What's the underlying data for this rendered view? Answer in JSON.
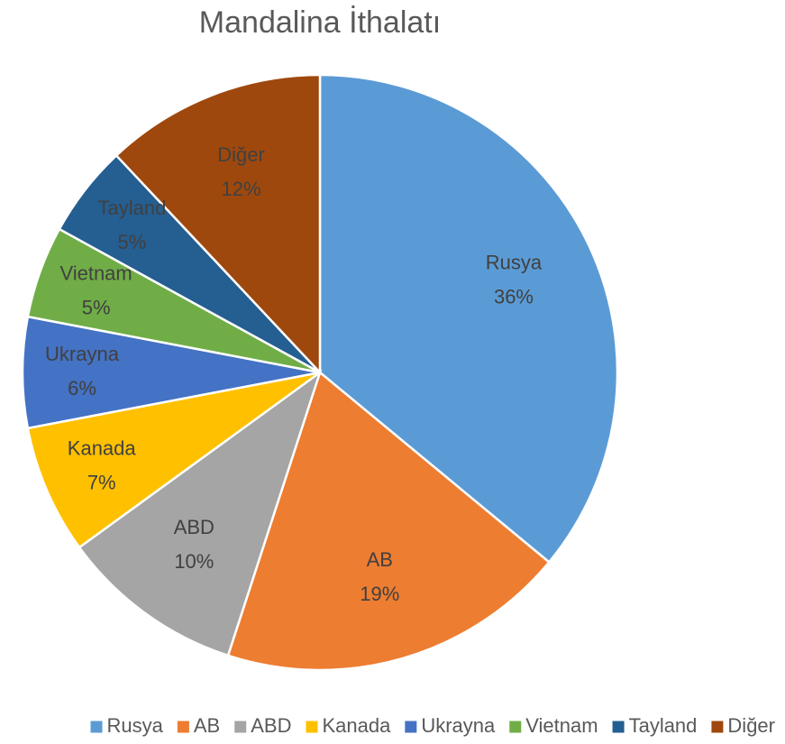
{
  "chart_data": {
    "type": "pie",
    "title": "Mandalina İthalatı",
    "categories": [
      "Rusya",
      "AB",
      "ABD",
      "Kanada",
      "Ukrayna",
      "Vietnam",
      "Tayland",
      "Diğer"
    ],
    "values": [
      36,
      19,
      10,
      7,
      6,
      5,
      5,
      12
    ],
    "value_labels": [
      "36%",
      "19%",
      "10%",
      "7%",
      "6%",
      "5%",
      "5%",
      "12%"
    ],
    "colors": [
      "#5b9bd5",
      "#ed7d31",
      "#a5a5a5",
      "#ffc000",
      "#4472c4",
      "#70ad47",
      "#255e91",
      "#9e480e"
    ],
    "legend": "bottom"
  }
}
